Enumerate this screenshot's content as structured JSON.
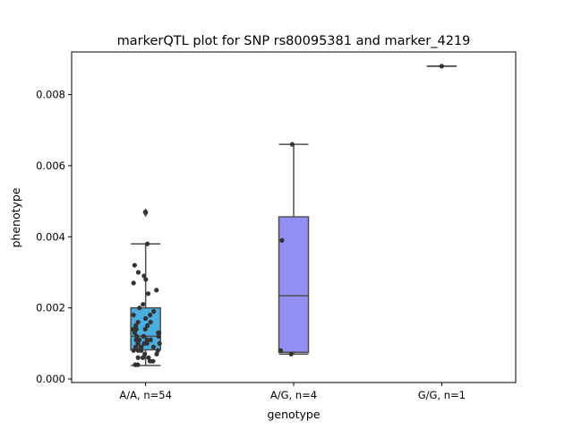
{
  "chart_data": {
    "type": "box",
    "title": "markerQTL plot for SNP rs80095381 and marker_4219",
    "xlabel": "genotype",
    "ylabel": "phenotype",
    "ylim": [
      -0.0001,
      0.0092
    ],
    "yticks": [
      0.0,
      0.002,
      0.004,
      0.006,
      0.008
    ],
    "ytick_labels": [
      "0.000",
      "0.002",
      "0.004",
      "0.006",
      "0.008"
    ],
    "categories": [
      "A/A, n=54",
      "A/G, n=4",
      "G/G, n=1"
    ],
    "colors": [
      "#4aaee0",
      "#9290f5",
      "#9290f5"
    ],
    "boxes": [
      {
        "q1": 0.00082,
        "median": 0.0012,
        "q3": 0.002,
        "whisker_low": 0.00038,
        "whisker_high": 0.0038,
        "outliers": [
          0.00468
        ]
      },
      {
        "q1": 0.00075,
        "median": 0.00234,
        "q3": 0.00456,
        "whisker_low": 0.0007,
        "whisker_high": 0.0066,
        "outliers": []
      },
      {
        "q1": 0.0088,
        "median": 0.0088,
        "q3": 0.0088,
        "whisker_low": 0.0088,
        "whisker_high": 0.0088,
        "outliers": []
      }
    ],
    "points": [
      [
        0.0047,
        0.0038,
        0.0032,
        0.003,
        0.0029,
        0.0028,
        0.0027,
        0.0025,
        0.0024,
        0.0021,
        0.002,
        0.0019,
        0.0018,
        0.0018,
        0.0017,
        0.0016,
        0.0016,
        0.0015,
        0.0015,
        0.0014,
        0.0014,
        0.0014,
        0.0013,
        0.0013,
        0.0013,
        0.0012,
        0.0012,
        0.0012,
        0.0012,
        0.0011,
        0.0011,
        0.0011,
        0.0011,
        0.001,
        0.001,
        0.001,
        0.001,
        0.0009,
        0.0009,
        0.0009,
        0.0009,
        0.0008,
        0.0008,
        0.0008,
        0.0008,
        0.0007,
        0.0007,
        0.0006,
        0.0006,
        0.0006,
        0.0005,
        0.0005,
        0.0004,
        0.0004
      ],
      [
        0.0066,
        0.0039,
        0.0008,
        0.0007
      ],
      [
        0.0088
      ]
    ]
  }
}
